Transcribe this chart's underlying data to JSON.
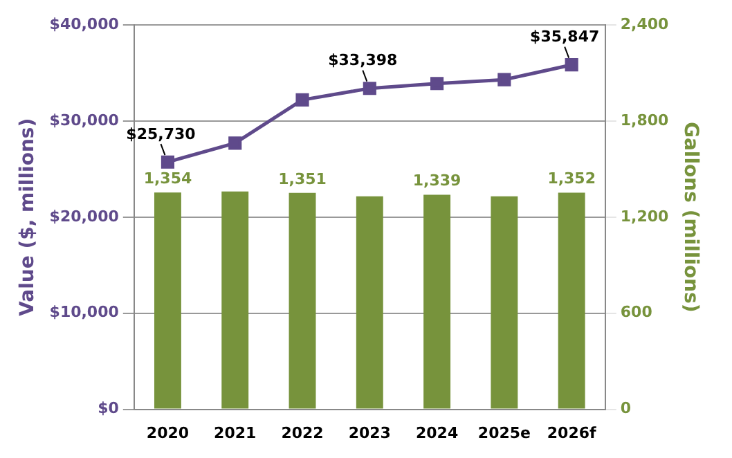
{
  "chart_data": {
    "type": "bar",
    "ylabel": "Value ($, millions)",
    "y2label": "Gallons (millions)",
    "categories": [
      "2020",
      "2021",
      "2022",
      "2023",
      "2024",
      "2025e",
      "2026f"
    ],
    "series": [
      {
        "type": "line",
        "color": "#5f4a8b",
        "values": [
          25730,
          27700,
          32200,
          33398,
          33900,
          34300,
          35847
        ],
        "value_labels": [
          "$25,730",
          null,
          null,
          "$33,398",
          null,
          null,
          "$35,847"
        ],
        "marker": "square"
      },
      {
        "axis": "y2",
        "color": "#77933c",
        "values": [
          1354,
          1360,
          1351,
          1330,
          1339,
          1330,
          1352
        ],
        "value_labels": [
          "1,354",
          null,
          "1,351",
          null,
          "1,339",
          null,
          "1,352"
        ]
      }
    ],
    "ylim": [
      0,
      40000
    ],
    "yticks": [
      {
        "value": 0,
        "label": "$0"
      },
      {
        "value": 10000,
        "label": "$10,000"
      },
      {
        "value": 20000,
        "label": "$20,000"
      },
      {
        "value": 30000,
        "label": "$30,000"
      },
      {
        "value": 40000,
        "label": "$40,000"
      }
    ],
    "y2lim": [
      0,
      2400
    ],
    "y2ticks": [
      0,
      600,
      {
        "value": 1200,
        "label": "1,200"
      },
      {
        "value": 1800,
        "label": "1,800"
      },
      {
        "value": 2400,
        "label": "2,400"
      }
    ],
    "grid": "y",
    "legend": false
  }
}
